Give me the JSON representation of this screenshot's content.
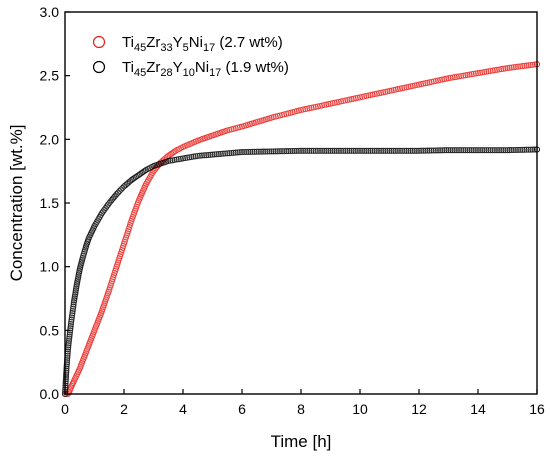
{
  "chart_data": {
    "type": "scatter",
    "xlabel": "Time [h]",
    "ylabel": "Concentration [wt.%]",
    "xlim": [
      0,
      16
    ],
    "ylim": [
      0,
      3.0
    ],
    "x_ticks": [
      "0",
      "2",
      "4",
      "6",
      "8",
      "10",
      "12",
      "14",
      "16"
    ],
    "y_ticks": [
      "0.0",
      "0.5",
      "1.0",
      "1.5",
      "2.0",
      "2.5",
      "3.0"
    ],
    "grid": false,
    "legend_position": "top-left",
    "series": [
      {
        "key": "s1",
        "label_parts": [
          {
            "t": "Ti",
            "sub": false
          },
          {
            "t": "45",
            "sub": true
          },
          {
            "t": "Zr",
            "sub": false
          },
          {
            "t": "33",
            "sub": true
          },
          {
            "t": "Y",
            "sub": false
          },
          {
            "t": "5",
            "sub": true
          },
          {
            "t": "Ni",
            "sub": false
          },
          {
            "t": "17",
            "sub": true
          },
          {
            "t": " (2.7 wt%)",
            "sub": false
          }
        ],
        "color": "#e8201c",
        "marker": "open-circle",
        "x": [
          0,
          0.1,
          0.15,
          0.2,
          0.3,
          0.5,
          0.75,
          1.0,
          1.25,
          1.5,
          1.75,
          2.0,
          2.25,
          2.5,
          2.75,
          3.0,
          3.25,
          3.5,
          3.75,
          4.0,
          4.5,
          5.0,
          5.5,
          6.0,
          7.0,
          8.0,
          9.0,
          10.0,
          11.0,
          12.0,
          13.0,
          14.0,
          15.0,
          16.0
        ],
        "y": [
          0.0,
          0.0,
          0.02,
          0.05,
          0.1,
          0.2,
          0.35,
          0.5,
          0.65,
          0.82,
          1.0,
          1.18,
          1.36,
          1.52,
          1.65,
          1.75,
          1.82,
          1.87,
          1.91,
          1.94,
          1.99,
          2.03,
          2.07,
          2.1,
          2.17,
          2.23,
          2.28,
          2.33,
          2.38,
          2.43,
          2.48,
          2.52,
          2.56,
          2.59
        ]
      },
      {
        "key": "s2",
        "label_parts": [
          {
            "t": "Ti",
            "sub": false
          },
          {
            "t": "45",
            "sub": true
          },
          {
            "t": "Zr",
            "sub": false
          },
          {
            "t": "28",
            "sub": true
          },
          {
            "t": "Y",
            "sub": false
          },
          {
            "t": "10",
            "sub": true
          },
          {
            "t": "Ni",
            "sub": false
          },
          {
            "t": "17",
            "sub": true
          },
          {
            "t": " (1.9 wt%)",
            "sub": false
          }
        ],
        "color": "#000000",
        "marker": "open-circle",
        "x": [
          0,
          0.05,
          0.1,
          0.2,
          0.3,
          0.4,
          0.5,
          0.6,
          0.7,
          0.8,
          1.0,
          1.25,
          1.5,
          1.75,
          2.0,
          2.25,
          2.5,
          2.75,
          3.0,
          3.25,
          3.5,
          4.0,
          4.5,
          5.0,
          5.5,
          6.0,
          7.0,
          8.0,
          9.0,
          10.0,
          11.0,
          12.0,
          13.0,
          14.0,
          15.0,
          16.0
        ],
        "y": [
          0.0,
          0.2,
          0.35,
          0.55,
          0.72,
          0.86,
          0.98,
          1.07,
          1.15,
          1.22,
          1.32,
          1.42,
          1.5,
          1.57,
          1.63,
          1.68,
          1.72,
          1.76,
          1.79,
          1.81,
          1.83,
          1.85,
          1.87,
          1.88,
          1.89,
          1.9,
          1.905,
          1.91,
          1.91,
          1.91,
          1.91,
          1.91,
          1.915,
          1.915,
          1.915,
          1.92
        ]
      }
    ]
  }
}
